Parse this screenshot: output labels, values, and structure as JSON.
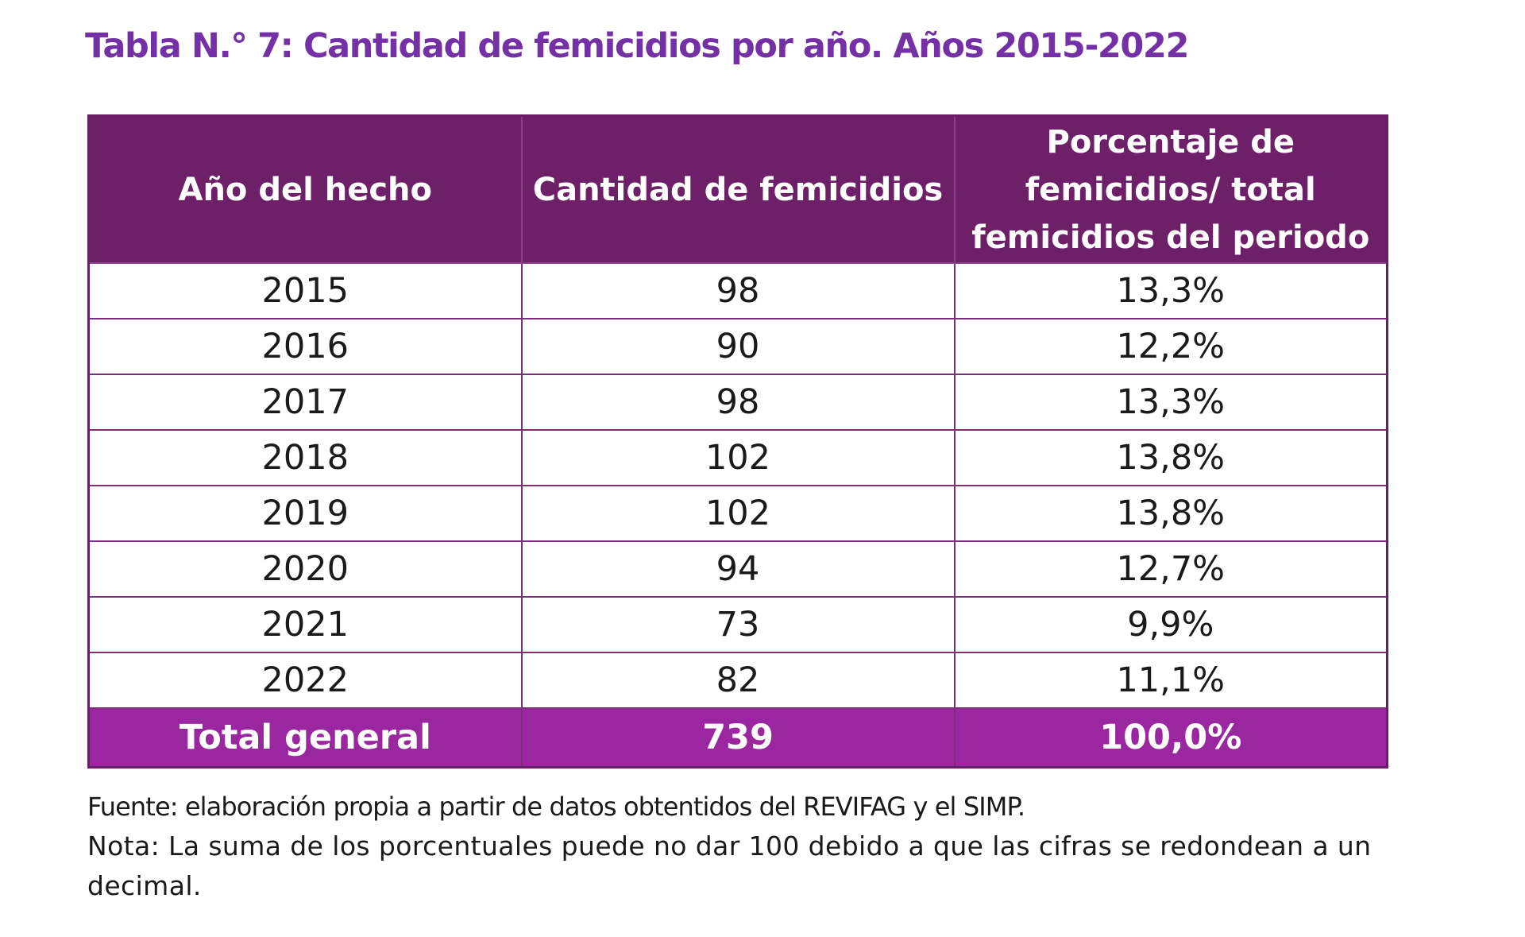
{
  "document": {
    "title": "Tabla N.° 7: Cantidad de femicidios por año. Años 2015-2022",
    "source": "Fuente: elaboración propia a partir de datos obtentidos del REVIFAG y el SIMP.",
    "note": "Nota: La suma de los porcentuales puede no dar 100 debido a que las cifras se redondean a un decimal."
  },
  "table": {
    "headers": [
      "Año del hecho",
      "Cantidad de femicidios",
      "Porcentaje de femicidios/ total femicidios del periodo"
    ],
    "rows": [
      [
        "2015",
        "98",
        "13,3%"
      ],
      [
        "2016",
        "90",
        "12,2%"
      ],
      [
        "2017",
        "98",
        "13,3%"
      ],
      [
        "2018",
        "102",
        "13,8%"
      ],
      [
        "2019",
        "102",
        "13,8%"
      ],
      [
        "2020",
        "94",
        "12,7%"
      ],
      [
        "2021",
        "73",
        "9,9%"
      ],
      [
        "2022",
        "82",
        "11,1%"
      ]
    ],
    "total": [
      "Total general",
      "739",
      "100,0%"
    ]
  },
  "colors": {
    "title": "#7431a5",
    "header_background": "#6d1f68",
    "total_background": "#9b27a0",
    "border": "#7b2e78"
  }
}
